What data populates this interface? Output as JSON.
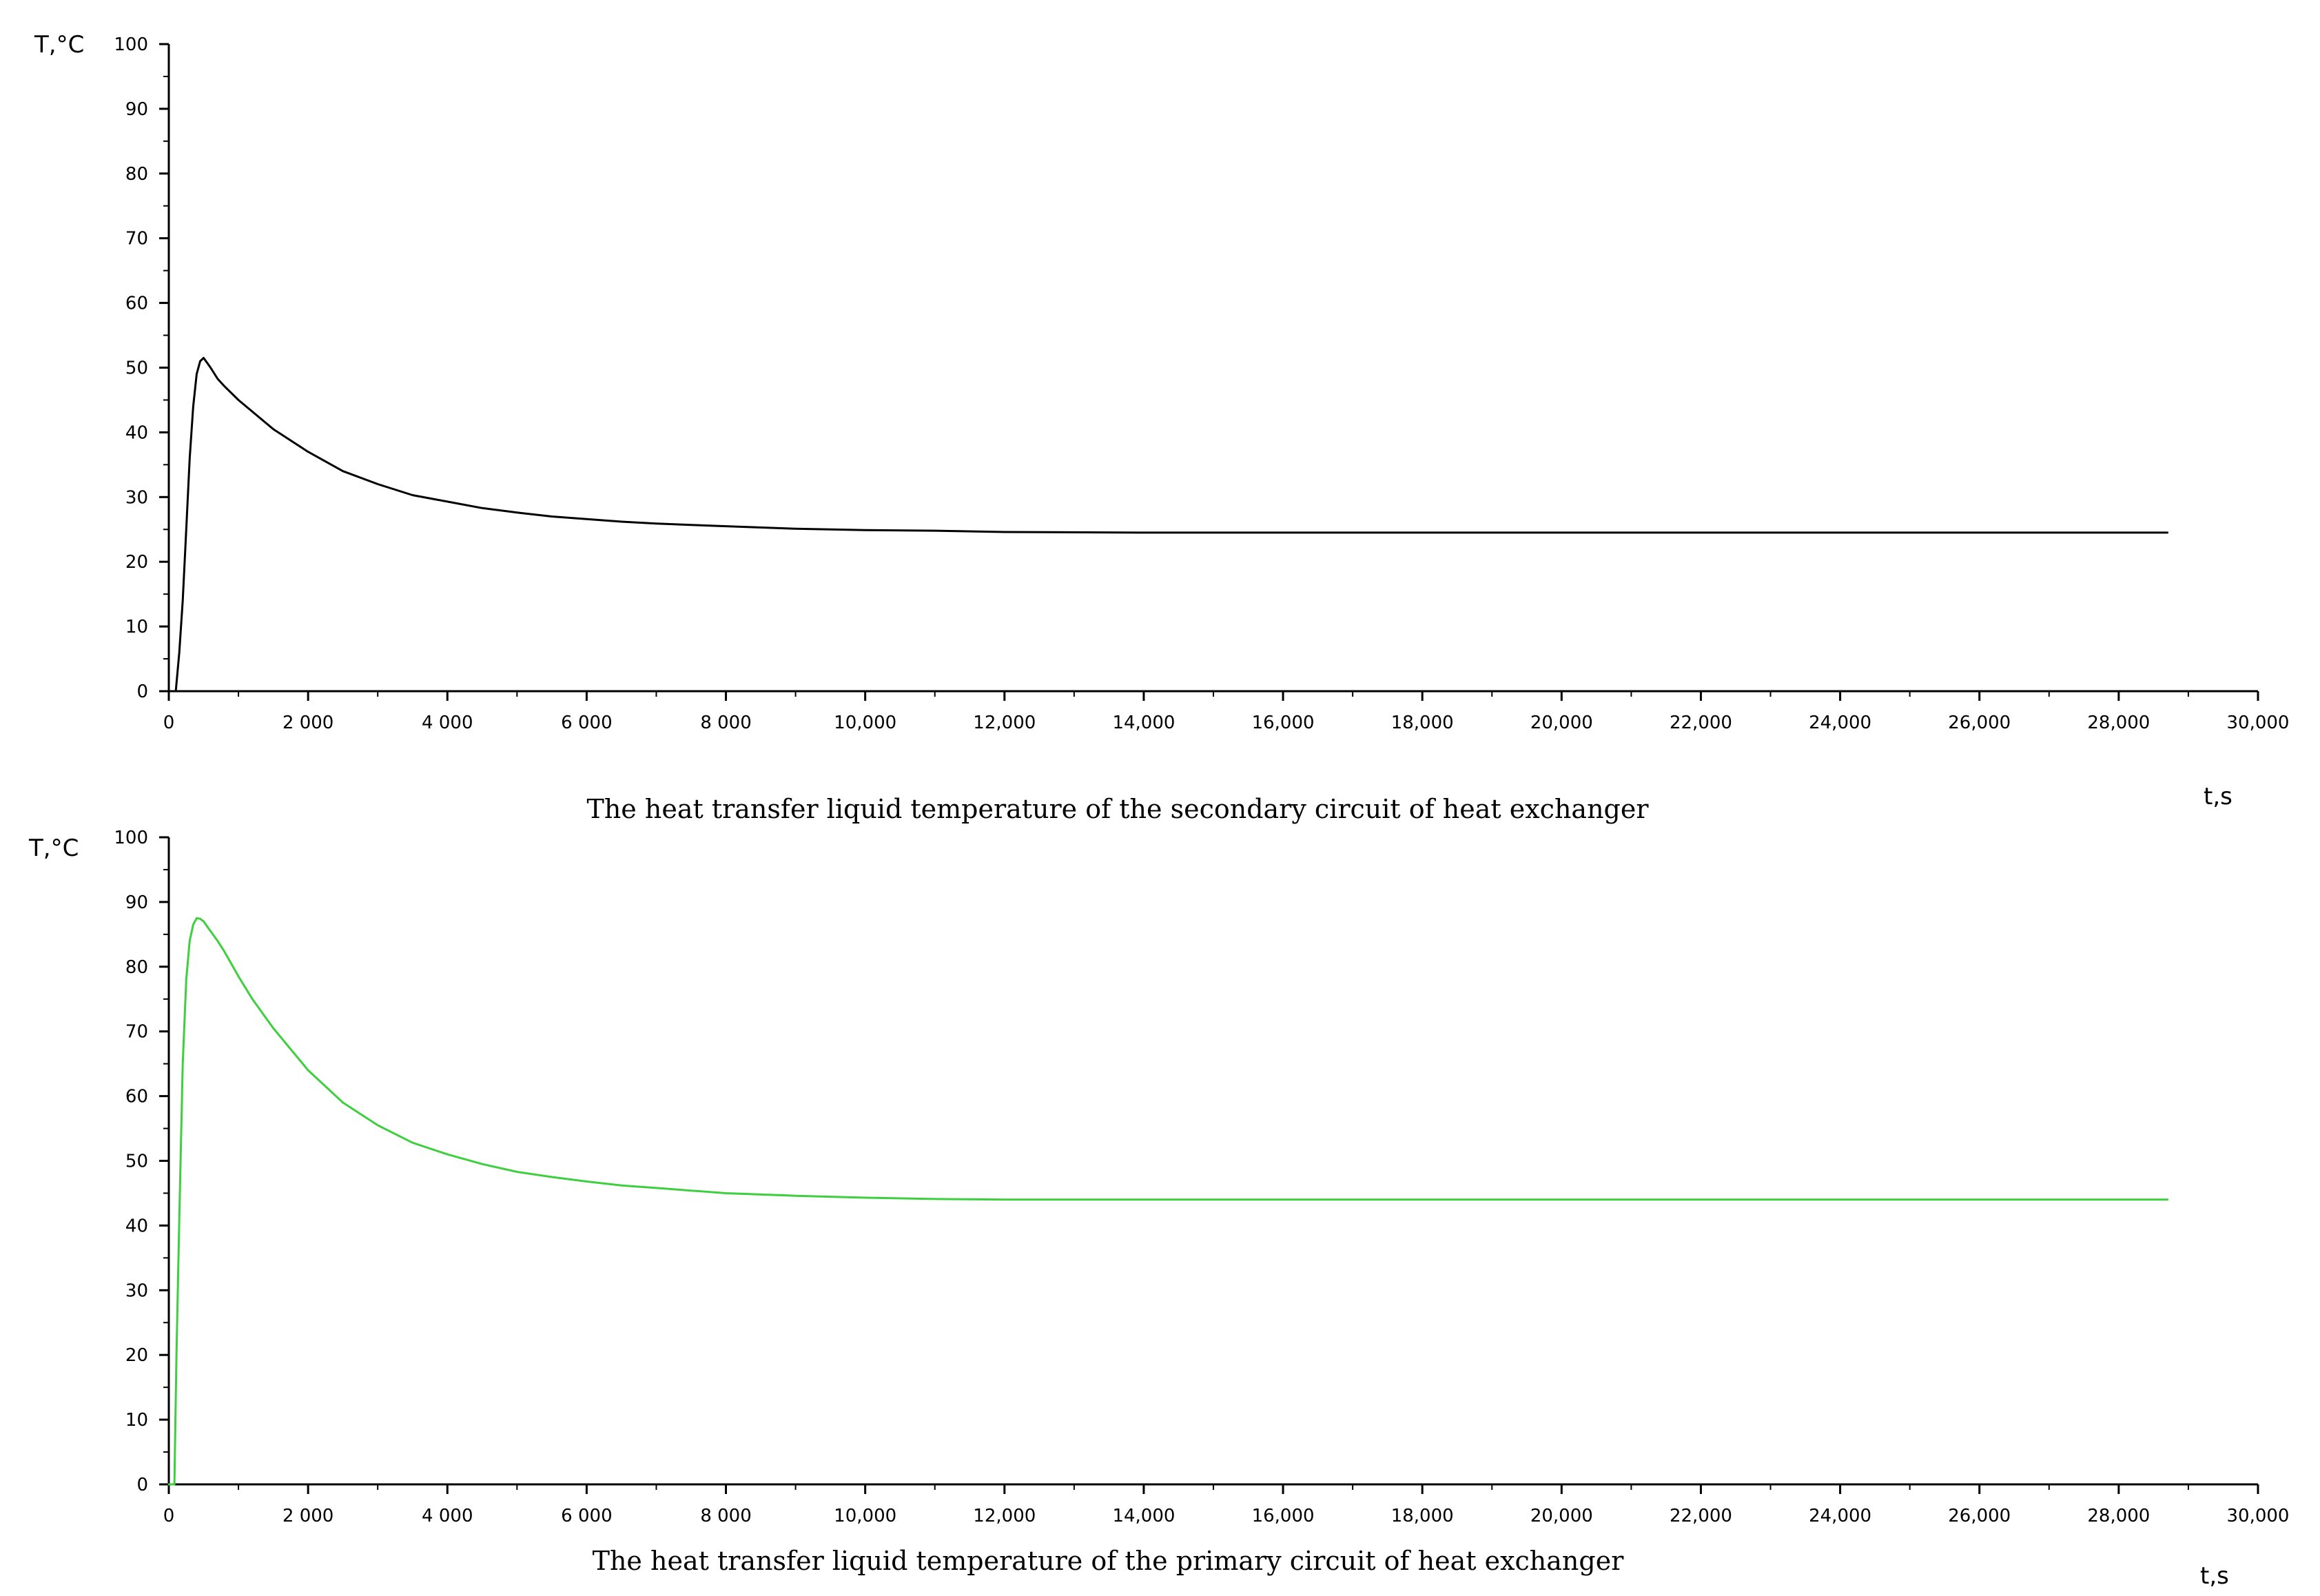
{
  "chart_data": [
    {
      "type": "line",
      "title": "The heat transfer liquid temperature of the secondary circuit  of heat exchanger",
      "xlabel": "t,s",
      "ylabel": "T,°C",
      "xlim": [
        0,
        30000
      ],
      "ylim": [
        0,
        100
      ],
      "xticks": [
        0,
        2000,
        4000,
        6000,
        8000,
        10000,
        12000,
        14000,
        16000,
        18000,
        20000,
        22000,
        24000,
        26000,
        28000,
        30000
      ],
      "xtick_labels": [
        "0",
        "2 000",
        "4 000",
        "6 000",
        "8 000",
        "10,000",
        "12,000",
        "14,000",
        "16,000",
        "18,000",
        "20,000",
        "22,000",
        "24,000",
        "26,000",
        "28,000",
        "30,000"
      ],
      "yticks": [
        0,
        10,
        20,
        30,
        40,
        50,
        60,
        70,
        80,
        90,
        100
      ],
      "ytick_labels": [
        "0",
        "10",
        "20",
        "30",
        "40",
        "50",
        "60",
        "70",
        "80",
        "90",
        "100"
      ],
      "grid": false,
      "legend": "none",
      "line_color": "#000000",
      "series": [
        {
          "x": [
            0,
            100,
            150,
            200,
            250,
            300,
            350,
            400,
            450,
            500,
            600,
            700,
            800,
            1000,
            1200,
            1500,
            2000,
            2500,
            3000,
            3500,
            4000,
            4500,
            5000,
            5500,
            6000,
            6500,
            7000,
            7500,
            8000,
            9000,
            10000,
            11000,
            12000,
            14000,
            16000,
            18000,
            20000,
            22000,
            24000,
            26000,
            28700
          ],
          "y": [
            0,
            0,
            6,
            14,
            25,
            36,
            44,
            49,
            51,
            51.5,
            50,
            48.3,
            47.1,
            45,
            43.2,
            40.5,
            37,
            34,
            32,
            30.3,
            29.3,
            28.3,
            27.6,
            27,
            26.6,
            26.2,
            25.9,
            25.7,
            25.5,
            25.1,
            24.9,
            24.8,
            24.6,
            24.5,
            24.5,
            24.5,
            24.5,
            24.5,
            24.5,
            24.5,
            24.5
          ]
        }
      ]
    },
    {
      "type": "line",
      "title": "The heat transfer liquid  temperature of the primary circuit  of heat exchanger",
      "xlabel": "t,s",
      "ylabel": "T,°C",
      "xlim": [
        0,
        30000
      ],
      "ylim": [
        0,
        100
      ],
      "xticks": [
        0,
        2000,
        4000,
        6000,
        8000,
        10000,
        12000,
        14000,
        16000,
        18000,
        20000,
        22000,
        24000,
        26000,
        28000,
        30000
      ],
      "xtick_labels": [
        "0",
        "2 000",
        "4 000",
        "6 000",
        "8 000",
        "10,000",
        "12,000",
        "14,000",
        "16,000",
        "18,000",
        "20,000",
        "22,000",
        "24,000",
        "26,000",
        "28,000",
        "30,000"
      ],
      "yticks": [
        0,
        10,
        20,
        30,
        40,
        50,
        60,
        70,
        80,
        90,
        100
      ],
      "ytick_labels": [
        "0",
        "10",
        "20",
        "30",
        "40",
        "50",
        "60",
        "70",
        "80",
        "90",
        "100"
      ],
      "grid": false,
      "legend": "none",
      "line_color": "#3ecf3e",
      "series": [
        {
          "x": [
            0,
            80,
            110,
            150,
            200,
            250,
            300,
            350,
            400,
            450,
            500,
            600,
            700,
            800,
            1000,
            1200,
            1500,
            2000,
            2500,
            3000,
            3500,
            4000,
            4500,
            5000,
            5500,
            6000,
            6500,
            7000,
            7500,
            8000,
            9000,
            10000,
            11000,
            12000,
            14000,
            16000,
            18000,
            20000,
            22000,
            24000,
            26000,
            28700
          ],
          "y": [
            0,
            0,
            20,
            41,
            65,
            78,
            84,
            86.5,
            87.5,
            87.4,
            87,
            85.5,
            84,
            82.3,
            78.5,
            75,
            70.5,
            64,
            59,
            55.5,
            52.8,
            51,
            49.5,
            48.3,
            47.5,
            46.8,
            46.2,
            45.8,
            45.4,
            45,
            44.6,
            44.3,
            44.1,
            44,
            44,
            44,
            44,
            44,
            44,
            44,
            44,
            44
          ]
        }
      ]
    }
  ]
}
